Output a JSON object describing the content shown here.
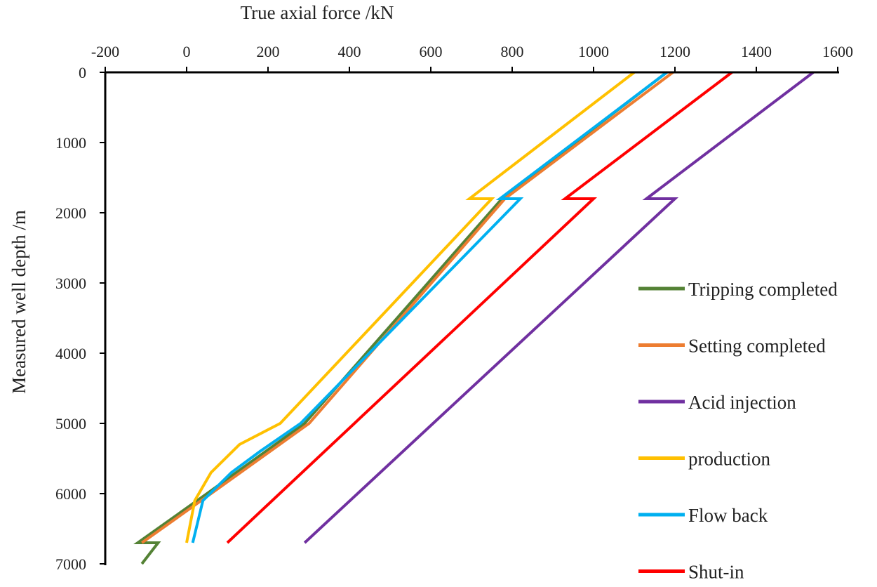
{
  "chart_data": {
    "type": "line",
    "title": "",
    "xlabel": "True axial force /kN",
    "ylabel": "Measured well depth /m",
    "xlim": [
      -200,
      1600
    ],
    "ylim": [
      0,
      7000
    ],
    "x_axis_position": "top",
    "y_axis_inverted": true,
    "grid": false,
    "legend_position": "right",
    "x_ticks": [
      -200,
      0,
      200,
      400,
      600,
      800,
      1000,
      1200,
      1400,
      1600
    ],
    "y_ticks": [
      0,
      1000,
      2000,
      3000,
      4000,
      5000,
      6000,
      7000
    ],
    "series": [
      {
        "name": "Tripping completed",
        "color": "#548235",
        "points": [
          [
            1180,
            0
          ],
          [
            775,
            1800
          ],
          [
            290,
            5000
          ],
          [
            50,
            6000
          ],
          [
            -120,
            6700
          ],
          [
            -70,
            6700
          ],
          [
            -110,
            7000
          ]
        ]
      },
      {
        "name": "Setting completed",
        "color": "#ED7D31",
        "points": [
          [
            1195,
            0
          ],
          [
            782,
            1800
          ],
          [
            301,
            5000
          ],
          [
            60,
            6000
          ],
          [
            -110,
            6700
          ]
        ]
      },
      {
        "name": "Acid injection",
        "color": "#7030A0",
        "points": [
          [
            1540,
            0
          ],
          [
            1130,
            1800
          ],
          [
            1200,
            1800
          ],
          [
            290,
            6700
          ]
        ]
      },
      {
        "name": "production",
        "color": "#FFC000",
        "points": [
          [
            1100,
            0
          ],
          [
            695,
            1800
          ],
          [
            750,
            1800
          ],
          [
            230,
            5000
          ],
          [
            130,
            5300
          ],
          [
            60,
            5700
          ],
          [
            20,
            6100
          ],
          [
            0,
            6700
          ]
        ]
      },
      {
        "name": "Flow back",
        "color": "#00B0F0",
        "points": [
          [
            1180,
            0
          ],
          [
            770,
            1800
          ],
          [
            820,
            1800
          ],
          [
            280,
            5000
          ],
          [
            180,
            5400
          ],
          [
            110,
            5700
          ],
          [
            40,
            6100
          ],
          [
            15,
            6700
          ]
        ]
      },
      {
        "name": "Shut-in",
        "color": "#FF0000",
        "points": [
          [
            1340,
            0
          ],
          [
            930,
            1800
          ],
          [
            1000,
            1800
          ],
          [
            100,
            6700
          ]
        ]
      }
    ]
  }
}
